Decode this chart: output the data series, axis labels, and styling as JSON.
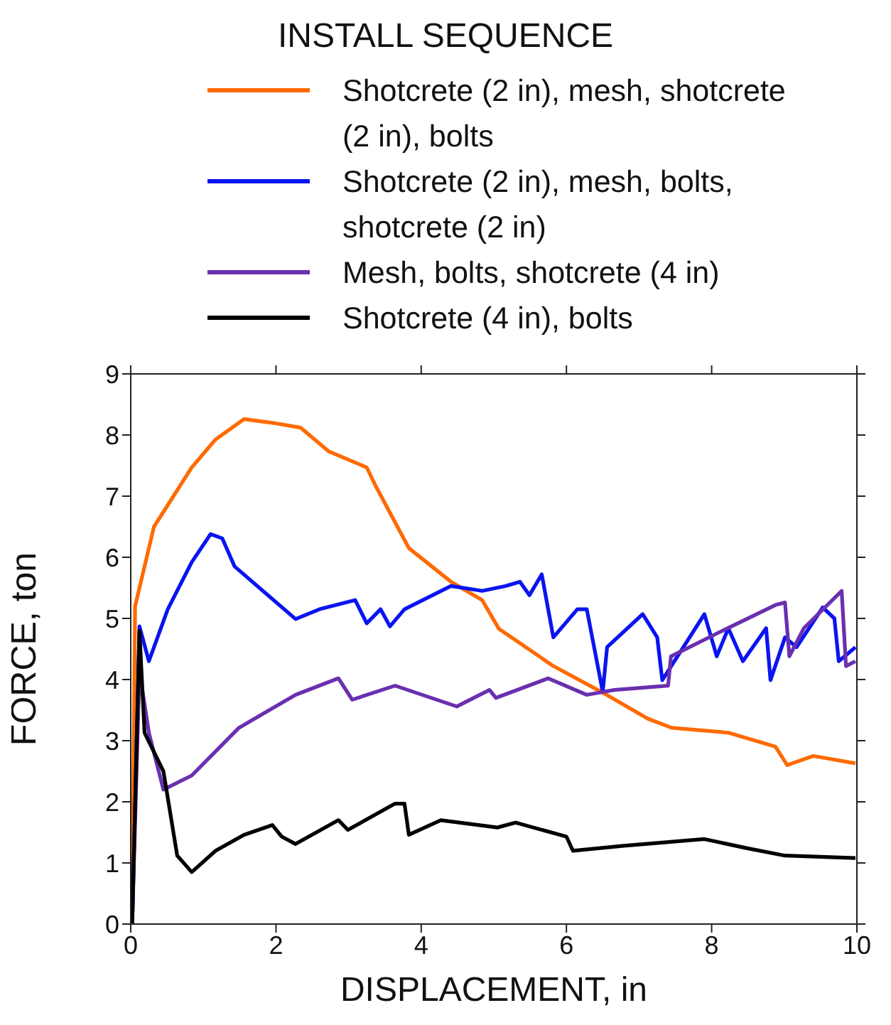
{
  "chart_data": {
    "type": "line",
    "legend_title": "INSTALL SEQUENCE",
    "xlabel": "DISPLACEMENT, in",
    "ylabel": "FORCE, ton",
    "xlim": [
      0,
      10
    ],
    "ylim": [
      0,
      9
    ],
    "xticks": [
      0,
      2,
      4,
      6,
      8,
      10
    ],
    "yticks": [
      0,
      1,
      2,
      3,
      4,
      5,
      6,
      7,
      8,
      9
    ],
    "legend": "top",
    "marker": "none",
    "line_style": "solid",
    "series": [
      {
        "name": "Shotcrete (2 in), mesh, shotcrete (2 in), bolts",
        "color": "#ff6a00",
        "x": [
          0.02,
          0.06,
          0.32,
          0.84,
          1.17,
          1.56,
          1.95,
          2.34,
          2.73,
          3.25,
          3.38,
          3.83,
          4.41,
          4.84,
          5.07,
          5.82,
          6.54,
          7.12,
          7.45,
          8.23,
          8.88,
          9.04,
          9.4,
          9.98
        ],
        "values": [
          0,
          5.2,
          6.5,
          7.47,
          7.93,
          8.26,
          8.2,
          8.12,
          7.73,
          7.47,
          7.15,
          6.15,
          5.6,
          5.3,
          4.83,
          4.22,
          3.76,
          3.36,
          3.21,
          3.13,
          2.9,
          2.6,
          2.75,
          2.63
        ]
      },
      {
        "name": "Shotcrete (2 in), mesh, bolts, shotcrete (2 in)",
        "color": "#0a14f0",
        "x": [
          0.02,
          0.12,
          0.25,
          0.51,
          0.84,
          1.1,
          1.26,
          1.43,
          1.82,
          2.27,
          2.6,
          3.09,
          3.25,
          3.44,
          3.57,
          3.77,
          4.41,
          4.84,
          5.16,
          5.36,
          5.49,
          5.66,
          5.82,
          6.15,
          6.28,
          6.5,
          6.56,
          7.05,
          7.25,
          7.32,
          7.9,
          8.07,
          8.23,
          8.43,
          8.75,
          8.81,
          9.01,
          9.17,
          9.53,
          9.69,
          9.75,
          9.98
        ],
        "values": [
          0,
          4.87,
          4.3,
          5.15,
          5.92,
          6.38,
          6.31,
          5.85,
          5.45,
          4.99,
          5.15,
          5.3,
          4.92,
          5.15,
          4.87,
          5.15,
          5.53,
          5.45,
          5.53,
          5.6,
          5.38,
          5.72,
          4.69,
          5.15,
          5.15,
          3.8,
          4.53,
          5.07,
          4.69,
          3.99,
          5.07,
          4.38,
          4.84,
          4.3,
          4.84,
          3.99,
          4.69,
          4.53,
          5.18,
          5.0,
          4.3,
          4.53
        ]
      },
      {
        "name": "Mesh, bolts, shotcrete (4 in)",
        "color": "#6a2fb0",
        "x": [
          0.02,
          0.12,
          0.25,
          0.45,
          0.84,
          1.49,
          1.82,
          2.27,
          2.86,
          3.05,
          3.64,
          4.49,
          4.94,
          5.03,
          5.75,
          6.28,
          6.66,
          7.4,
          7.44,
          8.1,
          8.88,
          9.01,
          9.07,
          9.27,
          9.79,
          9.85,
          9.98
        ],
        "values": [
          0,
          4.14,
          3.13,
          2.2,
          2.43,
          3.21,
          3.44,
          3.75,
          4.02,
          3.67,
          3.9,
          3.56,
          3.83,
          3.7,
          4.02,
          3.75,
          3.83,
          3.9,
          4.38,
          4.77,
          5.22,
          5.26,
          4.38,
          4.84,
          5.45,
          4.22,
          4.3
        ]
      },
      {
        "name": "Shotcrete (4 in), bolts",
        "color": "#000000",
        "x": [
          0.02,
          0.12,
          0.19,
          0.45,
          0.64,
          0.84,
          1.17,
          1.56,
          1.95,
          2.08,
          2.27,
          2.86,
          2.99,
          3.64,
          3.77,
          3.83,
          4.27,
          5.05,
          5.3,
          6.0,
          6.09,
          6.79,
          7.9,
          8.49,
          9.01,
          9.98
        ],
        "values": [
          0,
          4.8,
          3.13,
          2.5,
          1.12,
          0.85,
          1.2,
          1.46,
          1.62,
          1.43,
          1.31,
          1.7,
          1.54,
          1.97,
          1.97,
          1.46,
          1.7,
          1.58,
          1.66,
          1.43,
          1.2,
          1.28,
          1.39,
          1.24,
          1.12,
          1.08
        ]
      }
    ]
  }
}
